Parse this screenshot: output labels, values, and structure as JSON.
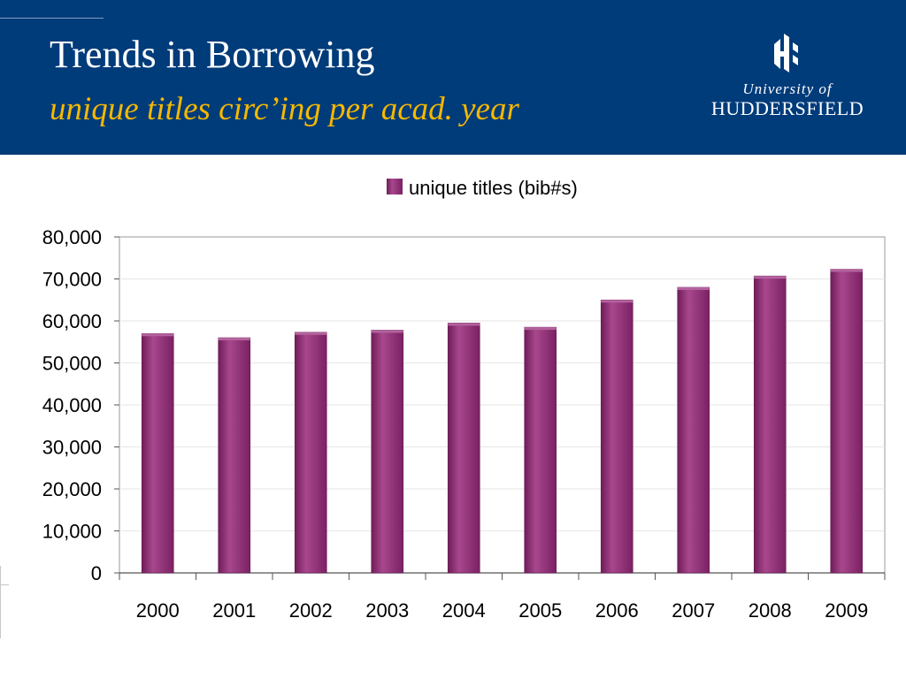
{
  "slide": {
    "title": "Trends in Borrowing",
    "subtitle": "unique titles circ’ing per acad. year"
  },
  "logo": {
    "line1": "University of",
    "line2": "HUDDERSFIELD",
    "mark_icon": "university-crest-icon"
  },
  "colors": {
    "header_bg": "#003b7a",
    "title": "#ffffff",
    "subtitle": "#f5b800",
    "bar": "#8e2a72",
    "bar_highlight": "#a8478d",
    "bar_shadow": "#6a1a55"
  },
  "chart_data": {
    "type": "bar",
    "title": "",
    "xlabel": "",
    "ylabel": "",
    "categories": [
      "2000",
      "2001",
      "2002",
      "2003",
      "2004",
      "2005",
      "2006",
      "2007",
      "2008",
      "2009"
    ],
    "series": [
      {
        "name": "unique titles (bib#s)",
        "values": [
          57000,
          56000,
          57300,
          57800,
          59500,
          58500,
          65000,
          68000,
          70700,
          72300
        ]
      }
    ],
    "ylim": [
      0,
      80000
    ],
    "yticks": [
      "0",
      "10,000",
      "20,000",
      "30,000",
      "40,000",
      "50,000",
      "60,000",
      "70,000",
      "80,000"
    ],
    "grid": true,
    "legend": "top-center"
  }
}
